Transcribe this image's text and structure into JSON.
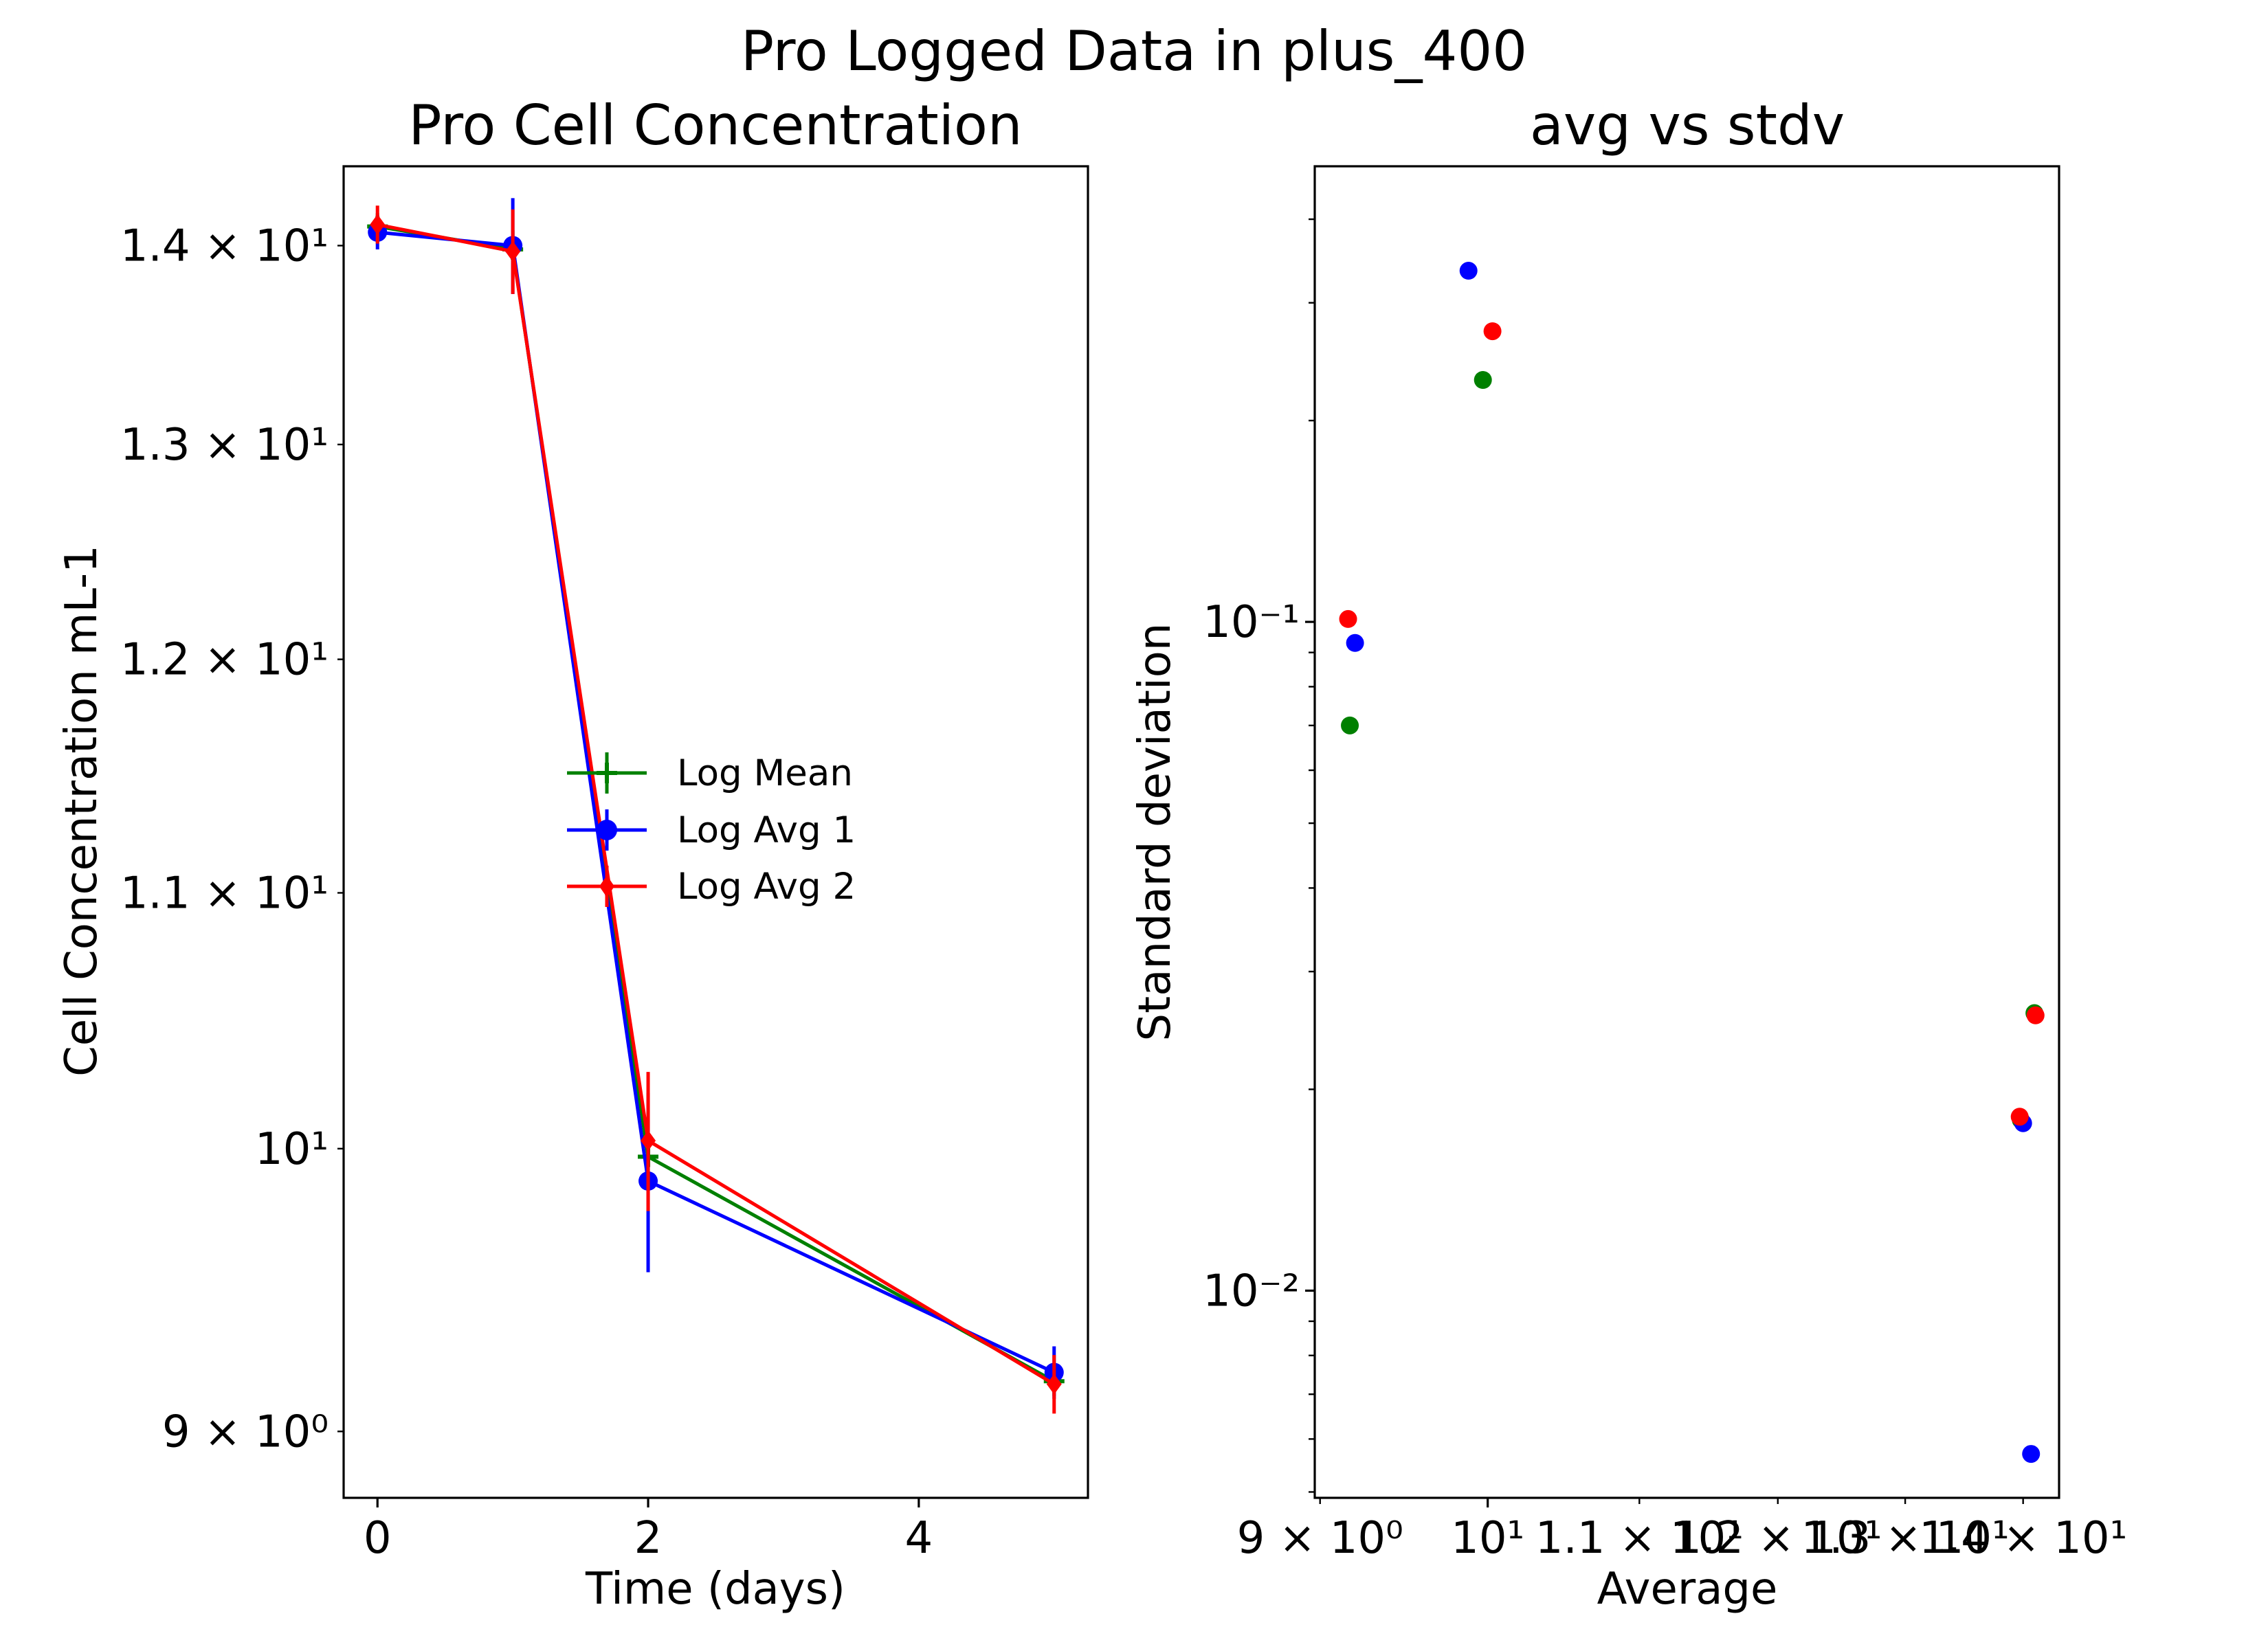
{
  "figure": {
    "suptitle": "Pro Logged Data in plus_400"
  },
  "chart_data": [
    {
      "type": "line",
      "title": "Pro Cell Concentration",
      "xlabel": "Time (days)",
      "ylabel": "Cell Concentration mL-1",
      "yscale": "log",
      "xlim": [
        -0.25,
        5.25
      ],
      "ylim": [
        8.78,
        14.42
      ],
      "x_ticks": [
        {
          "value": 0,
          "label": "0"
        },
        {
          "value": 2,
          "label": "2"
        },
        {
          "value": 4,
          "label": "4"
        }
      ],
      "y_ticks": [
        {
          "value": 9,
          "label": "9 × 10⁰"
        },
        {
          "value": 10,
          "label": "10¹"
        },
        {
          "value": 11,
          "label": "1.1 × 10¹"
        },
        {
          "value": 12,
          "label": "1.2 × 10¹"
        },
        {
          "value": 13,
          "label": "1.3 × 10¹"
        },
        {
          "value": 14,
          "label": "1.4 × 10¹"
        }
      ],
      "legend": {
        "placement": "center"
      },
      "series": [
        {
          "name": "Log Mean",
          "color": "#008000",
          "marker": "plus",
          "x": [
            0,
            1,
            2,
            5
          ],
          "y": [
            14.1,
            13.98,
            9.97,
            9.17
          ],
          "yerr": [
            0.07,
            0.1,
            0.07,
            0.05
          ]
        },
        {
          "name": "Log Avg 1",
          "color": "#0000ff",
          "marker": "circle",
          "x": [
            0,
            1,
            2,
            5
          ],
          "y": [
            14.07,
            14.0,
            9.88,
            9.2
          ],
          "yerr": [
            0.09,
            0.25,
            0.33,
            0.09
          ]
        },
        {
          "name": "Log Avg 2",
          "color": "#ff0000",
          "marker": "diamond",
          "x": [
            0,
            1,
            2,
            5
          ],
          "y": [
            14.11,
            13.97,
            10.03,
            9.16
          ],
          "yerr": [
            0.1,
            0.22,
            0.26,
            0.1
          ]
        }
      ]
    },
    {
      "type": "scatter",
      "title": "avg vs stdv",
      "xlabel": "Average",
      "ylabel": "Standard deviation",
      "xscale": "log",
      "yscale": "log",
      "xlim": [
        8.97,
        14.32
      ],
      "ylim": [
        0.0049,
        0.48
      ],
      "x_ticks": [
        {
          "value": 9,
          "label": "9 × 10⁰"
        },
        {
          "value": 10,
          "label": "10¹"
        },
        {
          "value": 11,
          "label": "1.1 × 10¹"
        },
        {
          "value": 12,
          "label": "1.2 × 10¹"
        },
        {
          "value": 13,
          "label": "1.3 × 10¹"
        },
        {
          "value": 14,
          "label": "1.4 × 10¹"
        }
      ],
      "y_ticks": [
        {
          "value": 0.01,
          "label": "10⁻²"
        },
        {
          "value": 0.1,
          "label": "10⁻¹"
        }
      ],
      "series": [
        {
          "color": "#008000",
          "points": [
            {
              "x": 9.17,
              "y": 0.07
            },
            {
              "x": 9.97,
              "y": 0.23
            },
            {
              "x": 14.1,
              "y": 0.026
            },
            {
              "x": 13.98,
              "y": 0.018
            }
          ]
        },
        {
          "color": "#0000ff",
          "points": [
            {
              "x": 9.2,
              "y": 0.093
            },
            {
              "x": 9.88,
              "y": 0.335
            },
            {
              "x": 14.07,
              "y": 0.0057
            },
            {
              "x": 14.0,
              "y": 0.0178
            }
          ]
        },
        {
          "color": "#ff0000",
          "points": [
            {
              "x": 9.16,
              "y": 0.101
            },
            {
              "x": 10.03,
              "y": 0.272
            },
            {
              "x": 14.11,
              "y": 0.0258
            },
            {
              "x": 13.97,
              "y": 0.0182
            }
          ]
        }
      ]
    }
  ]
}
